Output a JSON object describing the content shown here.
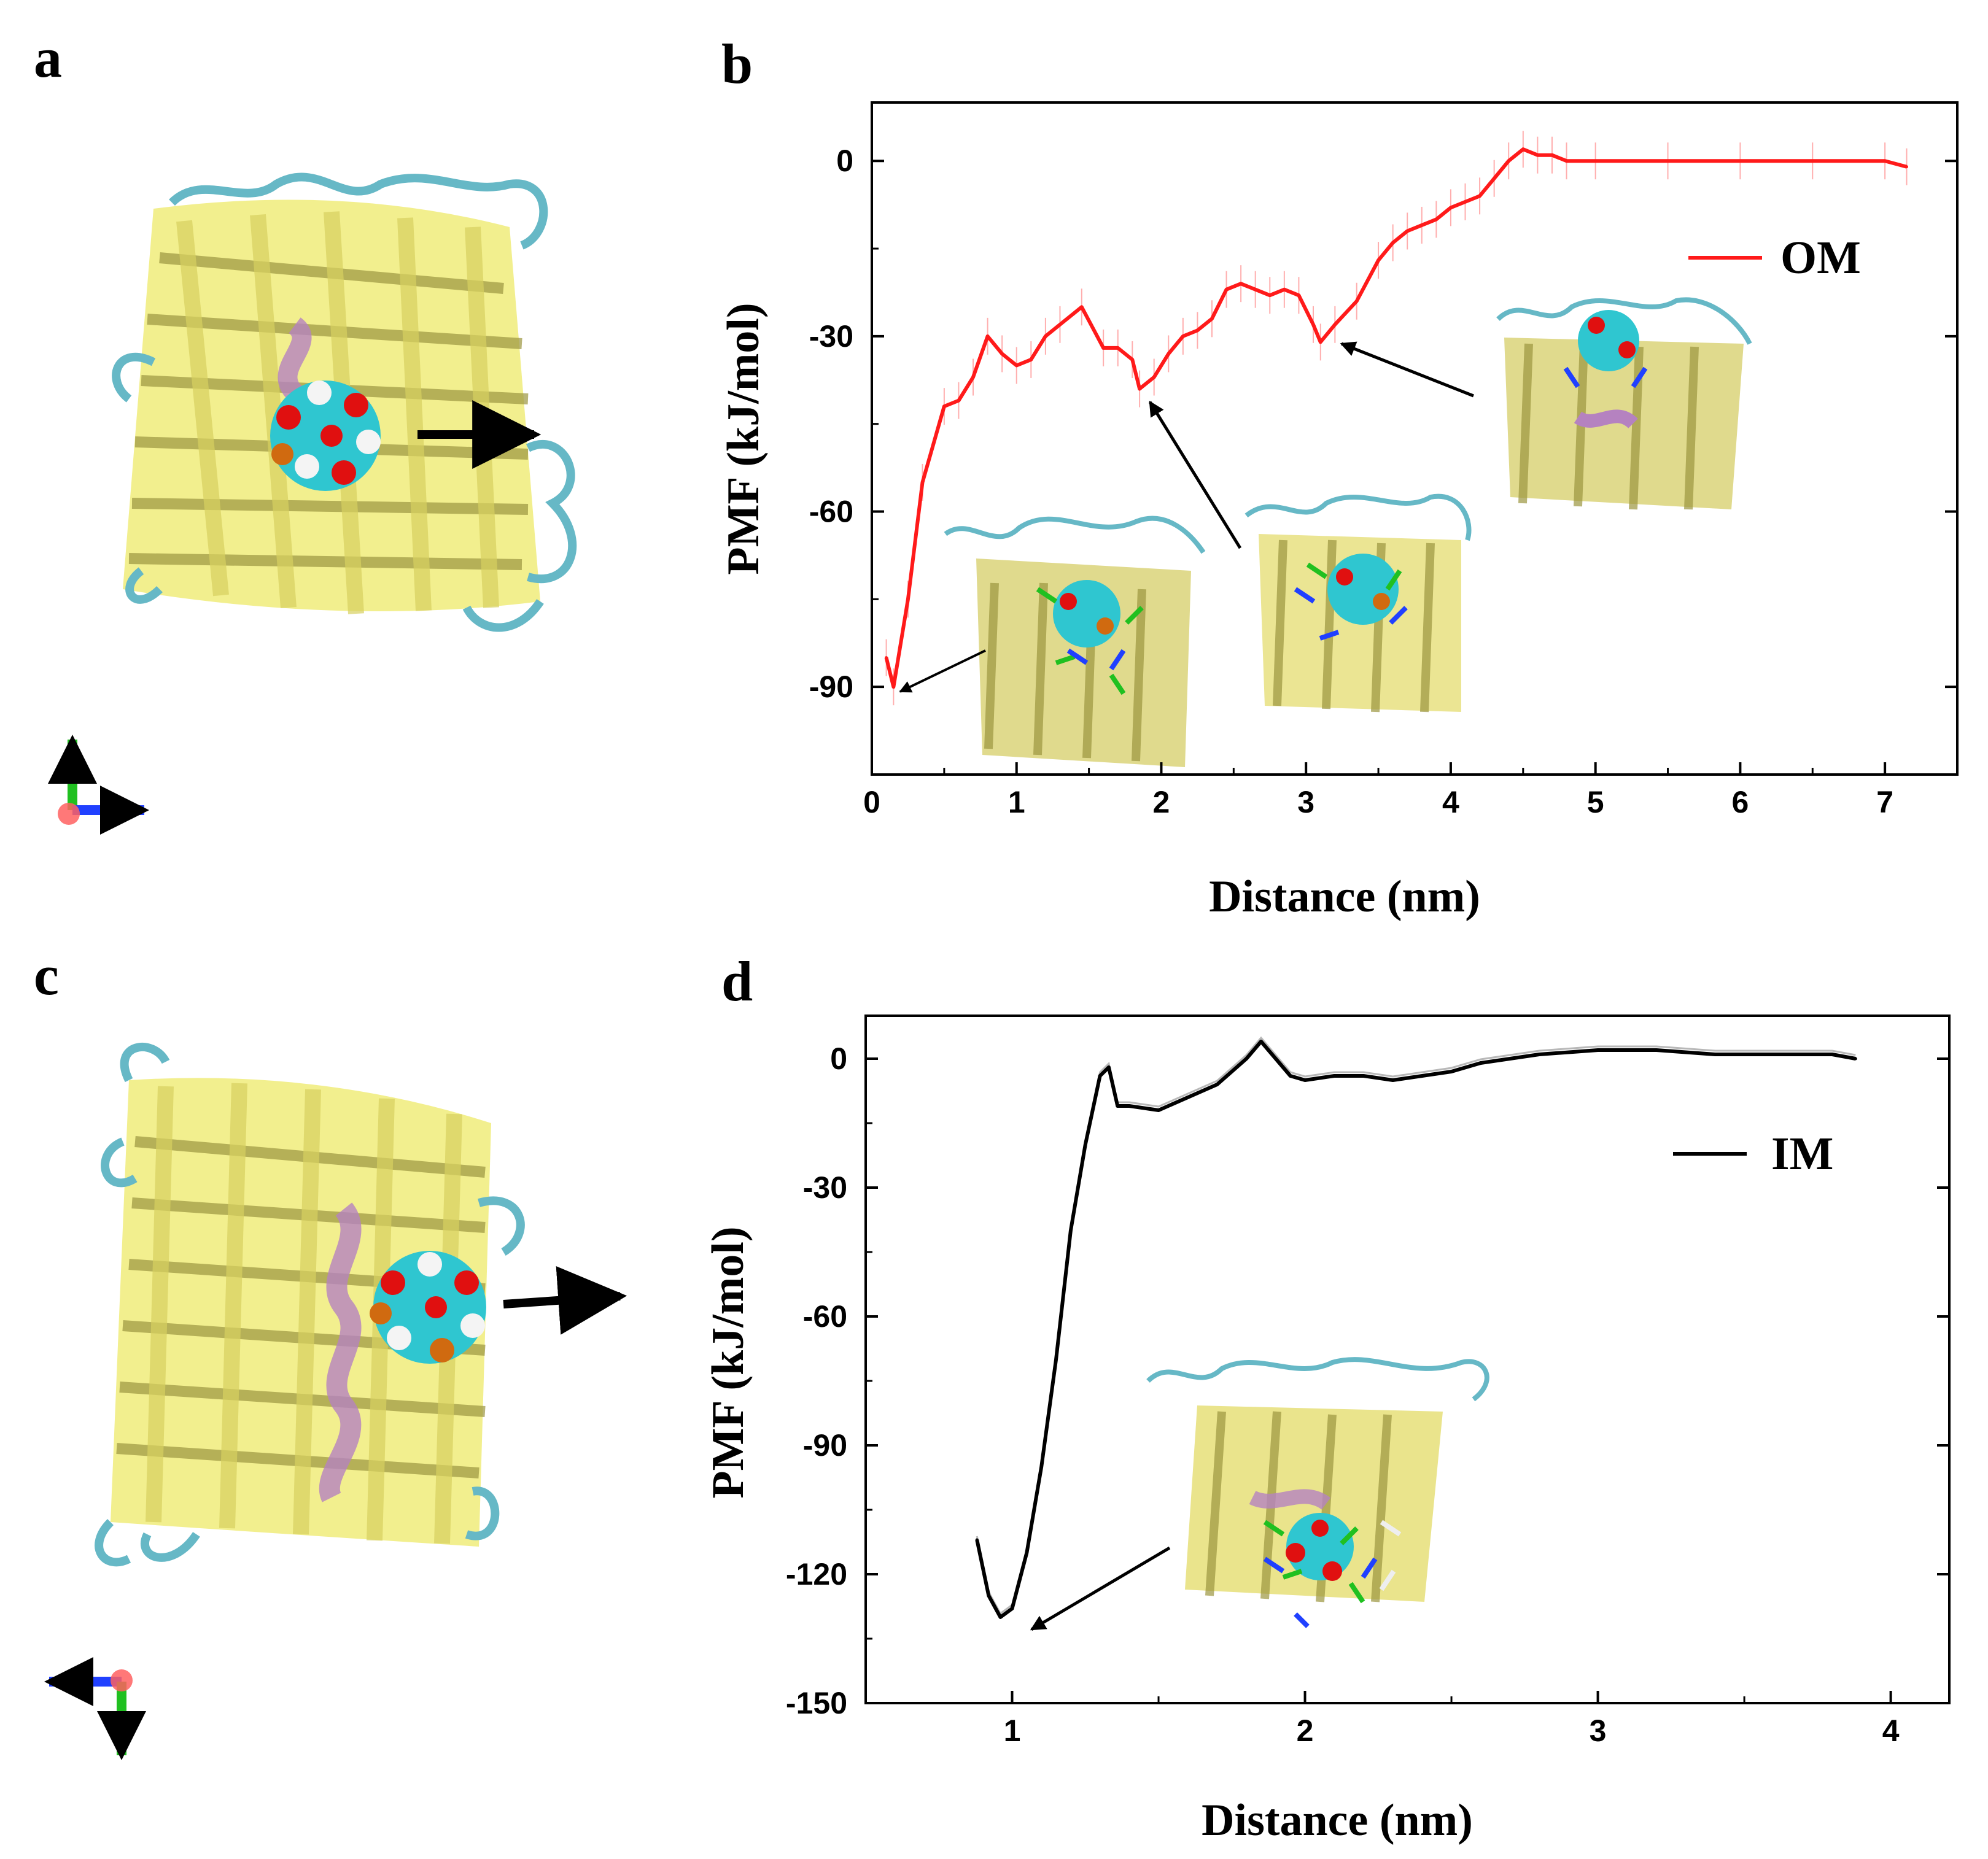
{
  "panels": {
    "a": "a",
    "b": "b",
    "c": "c",
    "d": "d"
  },
  "colors": {
    "strand_yellow": "#f0ec7a",
    "strand_dark": "#9c9640",
    "loop_cyan": "#66b8c6",
    "loop_white": "#e4e4e4",
    "helix_purple": "#b582c0",
    "ball_cyan": "#2fc6d0",
    "ball_red": "#e01010",
    "ball_white": "#f4f4f4",
    "ball_orange": "#d06a10",
    "om_red": "#ff1a1a",
    "im_black": "#000000",
    "axis_green": "#20c020",
    "axis_blue": "#2040ff",
    "axis_red": "#ff6060"
  },
  "chart_data": [
    {
      "id": "b",
      "type": "line",
      "xlabel": "Distance (nm)",
      "ylabel": "PMF (kJ/mol)",
      "xlim": [
        0,
        7.5
      ],
      "ylim": [
        -105,
        10
      ],
      "xticks": [
        0,
        1,
        2,
        3,
        4,
        5,
        6,
        7
      ],
      "yticks": [
        0,
        -30,
        -60,
        -90
      ],
      "series": [
        {
          "name": "OM",
          "color": "#ff1a1a",
          "x": [
            0.1,
            0.15,
            0.25,
            0.35,
            0.5,
            0.6,
            0.7,
            0.8,
            0.9,
            1.0,
            1.1,
            1.2,
            1.3,
            1.45,
            1.6,
            1.7,
            1.8,
            1.85,
            1.95,
            2.05,
            2.15,
            2.25,
            2.35,
            2.45,
            2.55,
            2.65,
            2.75,
            2.85,
            2.95,
            3.05,
            3.1,
            3.2,
            3.35,
            3.5,
            3.6,
            3.7,
            3.8,
            3.9,
            4.0,
            4.1,
            4.2,
            4.3,
            4.4,
            4.5,
            4.6,
            4.7,
            4.8,
            5.0,
            5.5,
            6.0,
            6.5,
            7.0,
            7.15
          ],
          "y": [
            -85,
            -90,
            -75,
            -55,
            -42,
            -41,
            -37,
            -30,
            -33,
            -35,
            -34,
            -30,
            -28,
            -25,
            -32,
            -32,
            -34,
            -39,
            -37,
            -33,
            -30,
            -29,
            -27,
            -22,
            -21,
            -22,
            -23,
            -22,
            -23,
            -28,
            -31,
            -28,
            -24,
            -17,
            -14,
            -12,
            -11,
            -10,
            -8,
            -7,
            -6,
            -3,
            0,
            2,
            1,
            1,
            0,
            0,
            0,
            0,
            0,
            0,
            -1
          ]
        }
      ]
    },
    {
      "id": "d",
      "type": "line",
      "xlabel": "Distance (nm)",
      "ylabel": "PMF (kJ/mol)",
      "xlim": [
        0.5,
        4.2
      ],
      "ylim": [
        -150,
        10
      ],
      "xticks": [
        1,
        2,
        3,
        4
      ],
      "yticks": [
        0,
        -30,
        -60,
        -90,
        -120,
        -150
      ],
      "series": [
        {
          "name": "IM",
          "color": "#000000",
          "x": [
            0.88,
            0.92,
            0.96,
            1.0,
            1.05,
            1.1,
            1.15,
            1.2,
            1.25,
            1.3,
            1.33,
            1.36,
            1.4,
            1.5,
            1.6,
            1.7,
            1.8,
            1.85,
            1.9,
            1.95,
            2.0,
            2.1,
            2.2,
            2.3,
            2.4,
            2.5,
            2.6,
            2.7,
            2.8,
            3.0,
            3.2,
            3.4,
            3.6,
            3.8,
            3.88
          ],
          "y": [
            -112,
            -125,
            -130,
            -128,
            -115,
            -95,
            -70,
            -40,
            -20,
            -4,
            -2,
            -11,
            -11,
            -12,
            -9,
            -6,
            0,
            4,
            0,
            -4,
            -5,
            -4,
            -4,
            -5,
            -4,
            -3,
            -1,
            0,
            1,
            2,
            2,
            1,
            1,
            1,
            0
          ]
        }
      ]
    }
  ]
}
